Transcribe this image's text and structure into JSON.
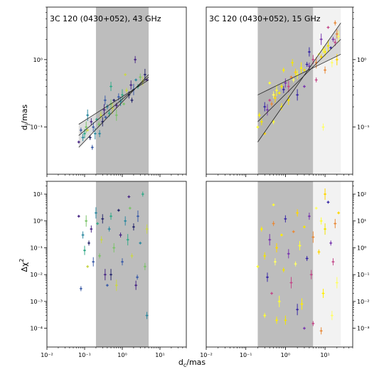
{
  "figure": {
    "xlabel_main": "d",
    "xlabel_sub": "c",
    "xlabel_unit": "/mas",
    "ylabel_top_main": "d",
    "ylabel_top_sub": "j",
    "ylabel_top_unit": "/mas",
    "ylabel_bottom_main": "Δχ",
    "ylabel_bottom_sup": "2"
  },
  "chart_data": [
    {
      "type": "scatter",
      "title": "3C 120 (0430+052), 43 GHz",
      "xscale": "log",
      "yscale": "log",
      "xlim": [
        0.01,
        50
      ],
      "ylim": [
        0.02,
        6
      ],
      "x_ticks": [
        "10⁻²",
        "10⁻¹",
        "10⁰",
        "10¹"
      ],
      "y_ticks": [
        "10⁻¹",
        "10⁰"
      ],
      "shaded_band": [
        0.2,
        5.0
      ],
      "fit_lines": [
        {
          "x": [
            0.07,
            5.0
          ],
          "y": [
            0.05,
            0.6
          ]
        },
        {
          "x": [
            0.07,
            5.0
          ],
          "y": [
            0.11,
            0.5
          ]
        },
        {
          "x": [
            0.07,
            5.0
          ],
          "y": [
            0.075,
            0.55
          ]
        }
      ],
      "points": [
        [
          0.07,
          0.06
        ],
        [
          0.08,
          0.09
        ],
        [
          0.09,
          0.07
        ],
        [
          0.1,
          0.08
        ],
        [
          0.11,
          0.1
        ],
        [
          0.12,
          0.09
        ],
        [
          0.14,
          0.07
        ],
        [
          0.15,
          0.12
        ],
        [
          0.17,
          0.1
        ],
        [
          0.19,
          0.08
        ],
        [
          0.21,
          0.13
        ],
        [
          0.24,
          0.11
        ],
        [
          0.27,
          0.15
        ],
        [
          0.3,
          0.12
        ],
        [
          0.33,
          0.18
        ],
        [
          0.36,
          0.14
        ],
        [
          0.4,
          0.2
        ],
        [
          0.45,
          0.16
        ],
        [
          0.5,
          0.22
        ],
        [
          0.55,
          0.19
        ],
        [
          0.6,
          0.25
        ],
        [
          0.7,
          0.21
        ],
        [
          0.8,
          0.28
        ],
        [
          0.9,
          0.24
        ],
        [
          1.0,
          0.3
        ],
        [
          1.1,
          0.22
        ],
        [
          1.3,
          0.35
        ],
        [
          1.5,
          0.3
        ],
        [
          1.7,
          0.42
        ],
        [
          2.0,
          0.36
        ],
        [
          2.3,
          0.5
        ],
        [
          2.6,
          0.4
        ],
        [
          3.0,
          0.55
        ],
        [
          3.5,
          0.48
        ],
        [
          4.0,
          0.6
        ],
        [
          4.5,
          0.5
        ],
        [
          0.16,
          0.05
        ],
        [
          0.25,
          0.08
        ],
        [
          0.5,
          0.4
        ],
        [
          0.7,
          0.15
        ],
        [
          1.2,
          0.6
        ],
        [
          1.8,
          0.25
        ],
        [
          2.2,
          1.0
        ],
        [
          0.35,
          0.25
        ],
        [
          0.12,
          0.15
        ]
      ]
    },
    {
      "type": "scatter",
      "title": "3C 120 (0430+052), 15 GHz",
      "xscale": "log",
      "yscale": "log",
      "xlim": [
        0.01,
        50
      ],
      "ylim": [
        0.02,
        6
      ],
      "x_ticks": [
        "10⁻²",
        "10⁻¹",
        "10⁰",
        "10¹"
      ],
      "y_ticks": [
        "10⁻¹",
        "10⁰"
      ],
      "shaded_band": [
        0.2,
        5.0
      ],
      "fit_lines": [
        {
          "x": [
            0.2,
            25
          ],
          "y": [
            0.06,
            3.5
          ]
        },
        {
          "x": [
            0.2,
            25
          ],
          "y": [
            0.3,
            1.2
          ]
        },
        {
          "x": [
            0.2,
            25
          ],
          "y": [
            0.12,
            2.0
          ]
        }
      ],
      "points": [
        [
          0.2,
          0.1
        ],
        [
          0.22,
          0.15
        ],
        [
          0.25,
          0.12
        ],
        [
          0.3,
          0.2
        ],
        [
          0.35,
          0.18
        ],
        [
          0.4,
          0.25
        ],
        [
          0.45,
          0.22
        ],
        [
          0.5,
          0.3
        ],
        [
          0.55,
          0.27
        ],
        [
          0.6,
          0.35
        ],
        [
          0.7,
          0.32
        ],
        [
          0.8,
          0.4
        ],
        [
          0.9,
          0.36
        ],
        [
          1.0,
          0.45
        ],
        [
          1.2,
          0.4
        ],
        [
          1.4,
          0.55
        ],
        [
          1.6,
          0.5
        ],
        [
          1.8,
          0.65
        ],
        [
          2.0,
          0.6
        ],
        [
          2.5,
          0.75
        ],
        [
          3.0,
          0.7
        ],
        [
          3.5,
          0.85
        ],
        [
          4.0,
          0.8
        ],
        [
          5.0,
          1.0
        ],
        [
          6.0,
          0.9
        ],
        [
          7.0,
          1.2
        ],
        [
          8.0,
          1.1
        ],
        [
          9.0,
          1.4
        ],
        [
          10.0,
          1.3
        ],
        [
          12.0,
          1.6
        ],
        [
          14.0,
          1.5
        ],
        [
          16.0,
          2.0
        ],
        [
          18.0,
          1.8
        ],
        [
          20.0,
          2.4
        ],
        [
          22.0,
          2.2
        ],
        [
          0.3,
          0.08
        ],
        [
          0.5,
          0.12
        ],
        [
          0.8,
          0.2
        ],
        [
          1.2,
          0.25
        ],
        [
          2.0,
          0.3
        ],
        [
          3.0,
          0.4
        ],
        [
          6.0,
          0.5
        ],
        [
          10.0,
          0.7
        ],
        [
          15.0,
          0.9
        ],
        [
          20.0,
          1.0
        ],
        [
          0.4,
          0.45
        ],
        [
          0.9,
          0.7
        ],
        [
          1.5,
          0.9
        ],
        [
          4.0,
          1.3
        ],
        [
          8.0,
          2.0
        ],
        [
          12.0,
          3.0
        ],
        [
          18.0,
          3.5
        ],
        [
          9.0,
          0.1
        ]
      ]
    },
    {
      "type": "scatter",
      "title": "",
      "xscale": "log",
      "yscale": "log",
      "xlim": [
        0.01,
        50
      ],
      "ylim": [
        2e-05,
        30
      ],
      "x_ticks": [
        "10⁻²",
        "10⁻¹",
        "10⁰",
        "10¹"
      ],
      "y_ticks": [
        "10⁻⁴",
        "10⁻³",
        "10⁻²",
        "10⁻¹",
        "10⁰",
        "10¹"
      ],
      "shaded_band": [
        0.2,
        5.0
      ],
      "points": [
        [
          0.07,
          1.5
        ],
        [
          0.08,
          0.003
        ],
        [
          0.09,
          0.3
        ],
        [
          0.1,
          0.08
        ],
        [
          0.11,
          1.0
        ],
        [
          0.12,
          0.02
        ],
        [
          0.13,
          0.15
        ],
        [
          0.15,
          0.5
        ],
        [
          0.17,
          0.03
        ],
        [
          0.2,
          2.0
        ],
        [
          0.22,
          0.8
        ],
        [
          0.25,
          0.05
        ],
        [
          0.28,
          0.2
        ],
        [
          0.3,
          1.2
        ],
        [
          0.35,
          0.01
        ],
        [
          0.4,
          0.004
        ],
        [
          0.45,
          0.5
        ],
        [
          0.5,
          1.5
        ],
        [
          0.6,
          0.1
        ],
        [
          0.7,
          0.004
        ],
        [
          0.8,
          2.5
        ],
        [
          0.9,
          0.3
        ],
        [
          1.0,
          0.03
        ],
        [
          1.2,
          1.0
        ],
        [
          1.4,
          0.2
        ],
        [
          1.6,
          3.0
        ],
        [
          1.8,
          0.05
        ],
        [
          2.0,
          0.6
        ],
        [
          2.3,
          0.004
        ],
        [
          2.6,
          1.5
        ],
        [
          3.0,
          0.15
        ],
        [
          3.5,
          10.0
        ],
        [
          4.0,
          0.02
        ],
        [
          4.5,
          0.5
        ],
        [
          0.5,
          0.01
        ],
        [
          1.5,
          8.0
        ],
        [
          2.5,
          0.008
        ],
        [
          4.5,
          0.0003
        ]
      ]
    },
    {
      "type": "scatter",
      "title": "",
      "xscale": "log",
      "yscale": "log",
      "xlim": [
        0.01,
        50
      ],
      "ylim": [
        0.0002,
        300
      ],
      "x_ticks": [
        "10⁻²",
        "10⁻¹",
        "10⁰",
        "10¹"
      ],
      "y_ticks": [
        "10⁻³",
        "10⁻²",
        "10⁻¹",
        "10⁰",
        "10¹",
        "10²"
      ],
      "shaded_band": [
        0.2,
        5.0
      ],
      "points": [
        [
          0.2,
          0.2
        ],
        [
          0.25,
          5.0
        ],
        [
          0.3,
          0.5
        ],
        [
          0.35,
          0.08
        ],
        [
          0.4,
          2.0
        ],
        [
          0.45,
          0.02
        ],
        [
          0.5,
          8.0
        ],
        [
          0.55,
          0.3
        ],
        [
          0.6,
          1.0
        ],
        [
          0.7,
          0.01
        ],
        [
          0.8,
          3.0
        ],
        [
          0.9,
          0.15
        ],
        [
          1.0,
          12.0
        ],
        [
          1.2,
          0.6
        ],
        [
          1.4,
          0.05
        ],
        [
          1.6,
          4.0
        ],
        [
          1.8,
          0.25
        ],
        [
          2.0,
          20.0
        ],
        [
          2.3,
          1.2
        ],
        [
          2.6,
          0.008
        ],
        [
          3.0,
          6.0
        ],
        [
          3.5,
          0.4
        ],
        [
          4.0,
          15.0
        ],
        [
          4.5,
          0.1
        ],
        [
          5.0,
          2.5
        ],
        [
          6.0,
          30.0
        ],
        [
          7.0,
          0.7
        ],
        [
          8.0,
          10.0
        ],
        [
          9.0,
          0.02
        ],
        [
          10.0,
          5.0
        ],
        [
          12.0,
          50.0
        ],
        [
          14.0,
          1.5
        ],
        [
          16.0,
          0.3
        ],
        [
          18.0,
          8.0
        ],
        [
          20.0,
          0.05
        ],
        [
          22.0,
          20.0
        ],
        [
          0.3,
          0.003
        ],
        [
          0.6,
          0.002
        ],
        [
          1.0,
          0.002
        ],
        [
          2.0,
          0.005
        ],
        [
          3.0,
          0.001
        ],
        [
          5.0,
          0.0015
        ],
        [
          8.0,
          0.0008
        ],
        [
          15.0,
          0.003
        ],
        [
          10.0,
          100.0
        ],
        [
          0.5,
          40.0
        ]
      ]
    }
  ]
}
